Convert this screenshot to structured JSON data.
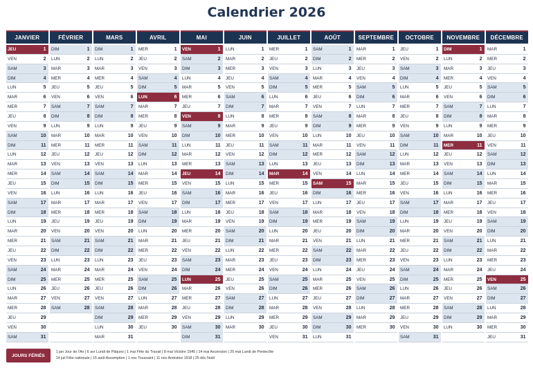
{
  "title": "Calendrier 2026",
  "colors": {
    "header": "#1d3352",
    "holiday": "#8e2d3f",
    "weekend": "#dde5ef"
  },
  "weekday_abbrev": [
    "LUN",
    "MAR",
    "MER",
    "JEU",
    "VEN",
    "SAM",
    "DIM"
  ],
  "months": [
    {
      "name": "JANVIER",
      "first_weekday": 3,
      "days": 31,
      "holidays": [
        1
      ]
    },
    {
      "name": "FÉVRIER",
      "first_weekday": 6,
      "days": 28,
      "holidays": []
    },
    {
      "name": "MARS",
      "first_weekday": 6,
      "days": 31,
      "holidays": []
    },
    {
      "name": "AVRIL",
      "first_weekday": 2,
      "days": 30,
      "holidays": [
        6
      ]
    },
    {
      "name": "MAI",
      "first_weekday": 4,
      "days": 31,
      "holidays": [
        1,
        8,
        14,
        25
      ]
    },
    {
      "name": "JUIN",
      "first_weekday": 0,
      "days": 30,
      "holidays": []
    },
    {
      "name": "JUILLET",
      "first_weekday": 2,
      "days": 31,
      "holidays": [
        14
      ]
    },
    {
      "name": "AOÛT",
      "first_weekday": 5,
      "days": 31,
      "holidays": [
        15
      ]
    },
    {
      "name": "SEPTEMBRE",
      "first_weekday": 1,
      "days": 30,
      "holidays": []
    },
    {
      "name": "OCTOBRE",
      "first_weekday": 3,
      "days": 31,
      "holidays": []
    },
    {
      "name": "NOVEMBRE",
      "first_weekday": 6,
      "days": 30,
      "holidays": [
        1,
        11
      ]
    },
    {
      "name": "DÉCEMBRE",
      "first_weekday": 1,
      "days": 31,
      "holidays": [
        25
      ]
    }
  ],
  "legend": {
    "badge": "JOURS FÉRIÉS",
    "line1": "1 jan Jour de l'An | 6 avr Lundi de Pâques | 1 mai Fête du Travail | 8 mai Victoire 1945 | 14 mai Ascension | 25 mai Lundi de Pentecôte",
    "line2": "14 juil Fête nationale | 15 août Assomption | 1 nov Toussaint | 11 nov Armistice 1918 | 25 déc Noël"
  }
}
